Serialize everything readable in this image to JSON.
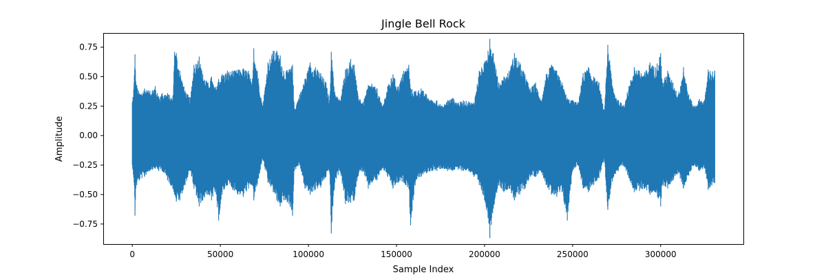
{
  "chart_data": {
    "type": "line",
    "title": "Jingle Bell Rock",
    "xlabel": "Sample Index",
    "ylabel": "Amplitude",
    "xlim": [
      -16500,
      347000
    ],
    "ylim": [
      -0.92,
      0.87
    ],
    "xticks": [
      0,
      50000,
      100000,
      150000,
      200000,
      250000,
      300000
    ],
    "xtick_labels": [
      "0",
      "50000",
      "100000",
      "150000",
      "200000",
      "250000",
      "300000"
    ],
    "yticks": [
      -0.75,
      -0.5,
      -0.25,
      0.0,
      0.25,
      0.5,
      0.75
    ],
    "ytick_labels": [
      "−0.75",
      "−0.50",
      "−0.25",
      "0.00",
      "0.25",
      "0.50",
      "0.75"
    ],
    "grid": false,
    "series": [
      {
        "color": "#1f77b4",
        "x_range": [
          0,
          330750
        ],
        "envelope_x": [
          0,
          1000,
          1500,
          2000,
          4000,
          7000,
          10000,
          13000,
          15000,
          17000,
          20000,
          23000,
          24000,
          25000,
          27000,
          30000,
          33000,
          35000,
          38000,
          40000,
          43000,
          45000,
          47000,
          49000,
          51000,
          54000,
          57000,
          60000,
          63000,
          66000,
          68000,
          69000,
          71000,
          74000,
          77000,
          80000,
          82000,
          84000,
          86000,
          89000,
          91000,
          92000,
          95000,
          98000,
          101000,
          104000,
          107000,
          110000,
          112000,
          113000,
          115000,
          118000,
          121000,
          124000,
          126000,
          128000,
          131000,
          134000,
          136000,
          139000,
          142000,
          145000,
          148000,
          151000,
          154000,
          157000,
          158000,
          161000,
          164000,
          167000,
          170000,
          173000,
          176000,
          179000,
          182000,
          185000,
          188000,
          191000,
          194000,
          197000,
          200000,
          202000,
          203000,
          205000,
          208000,
          211000,
          214000,
          217000,
          220000,
          223000,
          226000,
          229000,
          232000,
          235000,
          238000,
          241000,
          244000,
          247000,
          250000,
          253000,
          256000,
          259000,
          262000,
          265000,
          268000,
          270000,
          273000,
          276000,
          279000,
          282000,
          285000,
          288000,
          291000,
          294000,
          297000,
          300000,
          301000,
          304000,
          307000,
          310000,
          313000,
          316000,
          319000,
          322000,
          325000,
          327000,
          330750
        ],
        "envelope_upper": [
          0.28,
          0.45,
          0.69,
          0.46,
          0.36,
          0.4,
          0.38,
          0.42,
          0.33,
          0.36,
          0.36,
          0.32,
          0.71,
          0.7,
          0.55,
          0.38,
          0.32,
          0.6,
          0.67,
          0.52,
          0.45,
          0.5,
          0.4,
          0.48,
          0.52,
          0.55,
          0.55,
          0.56,
          0.57,
          0.55,
          0.43,
          0.74,
          0.55,
          0.25,
          0.62,
          0.72,
          0.72,
          0.68,
          0.55,
          0.56,
          0.6,
          0.23,
          0.35,
          0.48,
          0.62,
          0.58,
          0.53,
          0.45,
          0.3,
          0.71,
          0.37,
          0.3,
          0.56,
          0.65,
          0.6,
          0.36,
          0.28,
          0.43,
          0.44,
          0.4,
          0.25,
          0.42,
          0.52,
          0.42,
          0.55,
          0.6,
          0.4,
          0.38,
          0.4,
          0.35,
          0.3,
          0.3,
          0.25,
          0.3,
          0.32,
          0.28,
          0.3,
          0.29,
          0.28,
          0.55,
          0.62,
          0.72,
          0.82,
          0.7,
          0.45,
          0.5,
          0.55,
          0.7,
          0.62,
          0.52,
          0.4,
          0.45,
          0.3,
          0.52,
          0.6,
          0.55,
          0.45,
          0.32,
          0.3,
          0.28,
          0.53,
          0.58,
          0.5,
          0.45,
          0.2,
          0.77,
          0.4,
          0.3,
          0.26,
          0.42,
          0.58,
          0.55,
          0.54,
          0.62,
          0.58,
          0.7,
          0.45,
          0.55,
          0.45,
          0.35,
          0.58,
          0.35,
          0.25,
          0.31,
          0.3,
          0.56,
          0.55
        ],
        "envelope_lower": [
          -0.25,
          -0.4,
          -0.68,
          -0.45,
          -0.38,
          -0.35,
          -0.3,
          -0.28,
          -0.3,
          -0.3,
          -0.38,
          -0.45,
          -0.5,
          -0.56,
          -0.55,
          -0.42,
          -0.3,
          -0.45,
          -0.6,
          -0.55,
          -0.5,
          -0.55,
          -0.48,
          -0.72,
          -0.5,
          -0.42,
          -0.46,
          -0.5,
          -0.52,
          -0.45,
          -0.42,
          -0.55,
          -0.42,
          -0.2,
          -0.4,
          -0.48,
          -0.55,
          -0.6,
          -0.55,
          -0.58,
          -0.68,
          -0.3,
          -0.25,
          -0.45,
          -0.5,
          -0.46,
          -0.44,
          -0.35,
          -0.3,
          -0.83,
          -0.4,
          -0.3,
          -0.58,
          -0.57,
          -0.55,
          -0.35,
          -0.3,
          -0.45,
          -0.4,
          -0.38,
          -0.28,
          -0.35,
          -0.45,
          -0.4,
          -0.4,
          -0.45,
          -0.76,
          -0.38,
          -0.35,
          -0.32,
          -0.3,
          -0.3,
          -0.28,
          -0.3,
          -0.3,
          -0.29,
          -0.3,
          -0.3,
          -0.35,
          -0.42,
          -0.55,
          -0.7,
          -0.87,
          -0.62,
          -0.42,
          -0.48,
          -0.45,
          -0.55,
          -0.5,
          -0.45,
          -0.35,
          -0.35,
          -0.3,
          -0.42,
          -0.5,
          -0.52,
          -0.48,
          -0.72,
          -0.3,
          -0.25,
          -0.45,
          -0.48,
          -0.42,
          -0.36,
          -0.2,
          -0.63,
          -0.36,
          -0.3,
          -0.26,
          -0.36,
          -0.48,
          -0.47,
          -0.45,
          -0.5,
          -0.48,
          -0.6,
          -0.42,
          -0.45,
          -0.38,
          -0.32,
          -0.45,
          -0.34,
          -0.25,
          -0.3,
          -0.28,
          -0.46,
          -0.4
        ]
      }
    ]
  }
}
